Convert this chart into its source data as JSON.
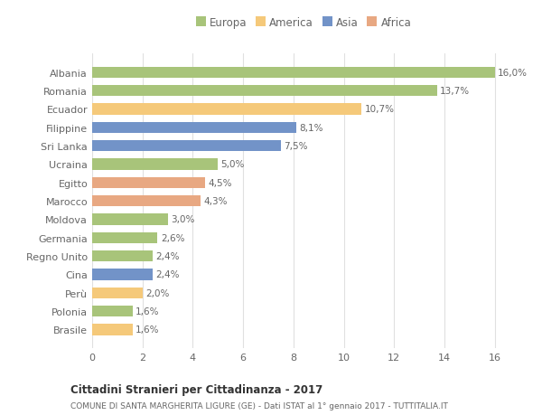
{
  "categories": [
    "Brasile",
    "Polonia",
    "Perù",
    "Cina",
    "Regno Unito",
    "Germania",
    "Moldova",
    "Marocco",
    "Egitto",
    "Ucraina",
    "Sri Lanka",
    "Filippine",
    "Ecuador",
    "Romania",
    "Albania"
  ],
  "values": [
    1.6,
    1.6,
    2.0,
    2.4,
    2.4,
    2.6,
    3.0,
    4.3,
    4.5,
    5.0,
    7.5,
    8.1,
    10.7,
    13.7,
    16.0
  ],
  "labels": [
    "1,6%",
    "1,6%",
    "2,0%",
    "2,4%",
    "2,4%",
    "2,6%",
    "3,0%",
    "4,3%",
    "4,5%",
    "5,0%",
    "7,5%",
    "8,1%",
    "10,7%",
    "13,7%",
    "16,0%"
  ],
  "colors": [
    "#f5c97a",
    "#a8c47a",
    "#f5c97a",
    "#7293c8",
    "#a8c47a",
    "#a8c47a",
    "#a8c47a",
    "#e8a882",
    "#e8a882",
    "#a8c47a",
    "#7293c8",
    "#7293c8",
    "#f5c97a",
    "#a8c47a",
    "#a8c47a"
  ],
  "legend_labels": [
    "Europa",
    "America",
    "Asia",
    "Africa"
  ],
  "legend_colors": [
    "#a8c47a",
    "#f5c97a",
    "#7293c8",
    "#e8a882"
  ],
  "title1": "Cittadini Stranieri per Cittadinanza - 2017",
  "title2": "COMUNE DI SANTA MARGHERITA LIGURE (GE) - Dati ISTAT al 1° gennaio 2017 - TUTTITALIA.IT",
  "xlim": [
    0,
    16.8
  ],
  "xticks": [
    0,
    2,
    4,
    6,
    8,
    10,
    12,
    14,
    16
  ],
  "background_color": "#ffffff",
  "grid_color": "#e0e0e0",
  "bar_height": 0.6
}
